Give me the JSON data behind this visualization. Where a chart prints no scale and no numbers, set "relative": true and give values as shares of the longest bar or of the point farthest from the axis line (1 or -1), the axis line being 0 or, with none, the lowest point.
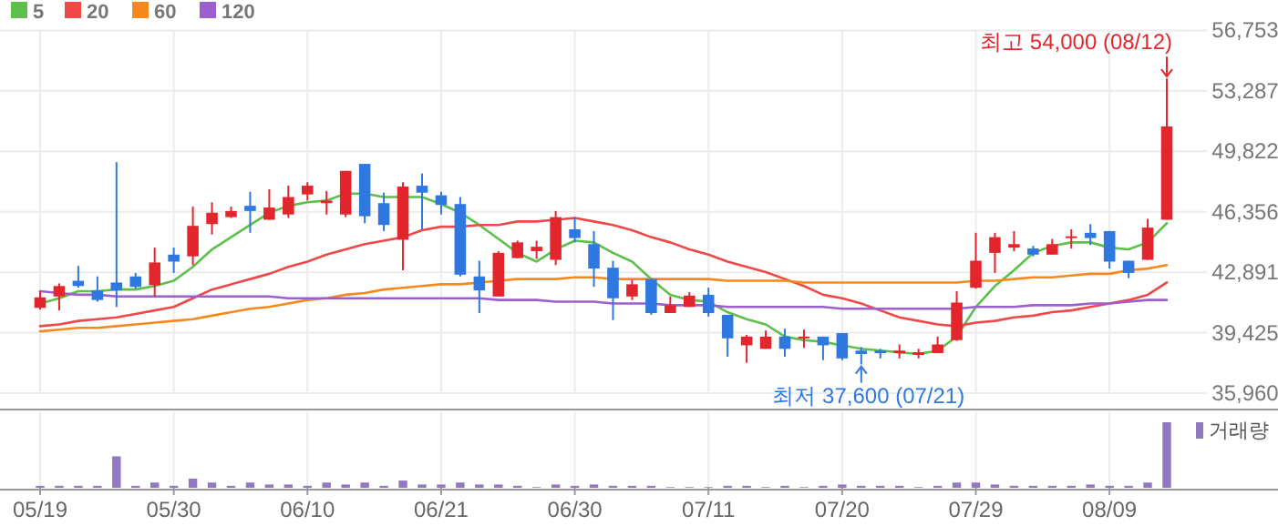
{
  "chart_data": [
    {
      "type": "candlestick",
      "categories": [
        null,
        null,
        null,
        null,
        null,
        null,
        null,
        null,
        null,
        null,
        null,
        null,
        null,
        null,
        null,
        null,
        null,
        null,
        null,
        null,
        null,
        null,
        null,
        null,
        null,
        null,
        null,
        null,
        null,
        null,
        null,
        null,
        null,
        null,
        null,
        null,
        null,
        null,
        null,
        null,
        null,
        null,
        null,
        null,
        null,
        null,
        null,
        null,
        null,
        null,
        null,
        null,
        null,
        null,
        null,
        null,
        null,
        null,
        null,
        null
      ],
      "ohlc": [
        [
          40850,
          41800,
          40750,
          41450
        ],
        [
          41500,
          42250,
          40700,
          42100
        ],
        [
          42400,
          43250,
          42000,
          42100
        ],
        [
          41850,
          42650,
          41200,
          41300
        ],
        [
          42300,
          49200,
          40900,
          41850
        ],
        [
          42650,
          42850,
          41950,
          42050
        ],
        [
          42150,
          44300,
          41500,
          43450
        ],
        [
          43900,
          44300,
          42850,
          43500
        ],
        [
          43800,
          46650,
          43300,
          45550
        ],
        [
          45650,
          46900,
          45050,
          46300
        ],
        [
          46050,
          46650,
          46000,
          46400
        ],
        [
          46700,
          47500,
          45150,
          46400
        ],
        [
          45900,
          47650,
          45900,
          46600
        ],
        [
          46200,
          47850,
          46000,
          47200
        ],
        [
          47350,
          48050,
          47000,
          47850
        ],
        [
          46850,
          47550,
          46200,
          47000
        ],
        [
          46200,
          48700,
          46050,
          48700
        ],
        [
          49100,
          49100,
          45700,
          46100
        ],
        [
          46850,
          47450,
          45250,
          45600
        ],
        [
          44750,
          48050,
          43000,
          47800
        ],
        [
          47850,
          48550,
          45350,
          47450
        ],
        [
          47300,
          47500,
          46200,
          46750
        ],
        [
          46800,
          47200,
          42650,
          42750
        ],
        [
          42650,
          43550,
          40550,
          41850
        ],
        [
          41500,
          44100,
          41500,
          44000
        ],
        [
          43700,
          44700,
          43700,
          44600
        ],
        [
          44100,
          44700,
          43650,
          44350
        ],
        [
          43600,
          46400,
          43300,
          46050
        ],
        [
          45350,
          46050,
          44600,
          44850
        ],
        [
          44500,
          45250,
          42050,
          43100
        ],
        [
          43150,
          43550,
          40150,
          41400
        ],
        [
          41500,
          42450,
          41300,
          42200
        ],
        [
          42500,
          42550,
          40450,
          40550
        ],
        [
          40550,
          41500,
          40550,
          41000
        ],
        [
          40900,
          41750,
          40900,
          41550
        ],
        [
          41600,
          42000,
          40350,
          40550
        ],
        [
          40450,
          40450,
          38050,
          39100
        ],
        [
          38700,
          39300,
          37700,
          39200
        ],
        [
          38500,
          39550,
          38500,
          39200
        ],
        [
          39200,
          39650,
          38050,
          38500
        ],
        [
          39100,
          39600,
          38550,
          39200
        ],
        [
          39200,
          39200,
          37850,
          38700
        ],
        [
          39400,
          39400,
          37850,
          37950
        ],
        [
          38400,
          38600,
          37600,
          38200
        ],
        [
          38400,
          38500,
          37950,
          38250
        ],
        [
          38250,
          38750,
          37950,
          38400
        ],
        [
          38150,
          38500,
          37950,
          38300
        ],
        [
          38250,
          39200,
          38250,
          38750
        ],
        [
          39000,
          41800,
          38950,
          41150
        ],
        [
          42000,
          45150,
          41950,
          43550
        ],
        [
          44000,
          45150,
          42850,
          44900
        ],
        [
          44300,
          45250,
          44100,
          44500
        ],
        [
          44250,
          44400,
          43800,
          43900
        ],
        [
          43900,
          44800,
          43900,
          44500
        ],
        [
          44850,
          45350,
          44250,
          44950
        ],
        [
          45150,
          45650,
          44450,
          44850
        ],
        [
          45250,
          45250,
          43100,
          43500
        ],
        [
          43550,
          43550,
          42550,
          42850
        ],
        [
          43600,
          45950,
          43600,
          45450
        ],
        [
          45900,
          54000,
          45900,
          51250
        ]
      ],
      "colors": [
        "#e3262d",
        "#e3262d",
        "#2f78e0",
        "#2f78e0",
        "#2f78e0",
        "#2f78e0",
        "#e3262d",
        "#2f78e0",
        "#e3262d",
        "#e3262d",
        "#e3262d",
        "#2f78e0",
        "#e3262d",
        "#e3262d",
        "#e3262d",
        "#e3262d",
        "#e3262d",
        "#2f78e0",
        "#2f78e0",
        "#e3262d",
        "#2f78e0",
        "#2f78e0",
        "#2f78e0",
        "#2f78e0",
        "#e3262d",
        "#e3262d",
        "#e3262d",
        "#e3262d",
        "#2f78e0",
        "#2f78e0",
        "#2f78e0",
        "#e3262d",
        "#2f78e0",
        "#e3262d",
        "#e3262d",
        "#2f78e0",
        "#2f78e0",
        "#e3262d",
        "#e3262d",
        "#2f78e0",
        "#e3262d",
        "#2f78e0",
        "#2f78e0",
        "#2f78e0",
        "#2f78e0",
        "#e3262d",
        "#e3262d",
        "#e3262d",
        "#e3262d",
        "#e3262d",
        "#e3262d",
        "#e3262d",
        "#2f78e0",
        "#e3262d",
        "#e3262d",
        "#2f78e0",
        "#2f78e0",
        "#2f78e0",
        "#e3262d",
        "#e3262d"
      ],
      "series": [
        {
          "name": "5",
          "type": "line",
          "color": "#5cc04a",
          "values": [
            41100,
            41400,
            41800,
            41800,
            41900,
            41900,
            42100,
            42400,
            43200,
            44200,
            44900,
            45600,
            46300,
            46700,
            46900,
            47000,
            47400,
            47400,
            47200,
            47200,
            47200,
            46800,
            46300,
            45600,
            44800,
            44000,
            43500,
            44200,
            44700,
            44600,
            44000,
            43500,
            42500,
            41600,
            41300,
            41200,
            40600,
            40200,
            39900,
            39200,
            39000,
            38900,
            38700,
            38500,
            38400,
            38300,
            38200,
            38400,
            39200,
            40900,
            42100,
            43000,
            44000,
            44400,
            44600,
            44600,
            44300,
            44200,
            44600,
            45700
          ]
        },
        {
          "name": "20",
          "type": "line",
          "color": "#f04848",
          "values": [
            39800,
            39900,
            40100,
            40200,
            40300,
            40500,
            40700,
            40900,
            41400,
            41900,
            42200,
            42500,
            42800,
            43200,
            43500,
            43900,
            44200,
            44500,
            44700,
            44900,
            45300,
            45500,
            45500,
            45600,
            45600,
            45800,
            45800,
            45900,
            46000,
            45800,
            45600,
            45300,
            44900,
            44600,
            44200,
            43900,
            43500,
            43200,
            42900,
            42500,
            42100,
            41600,
            41400,
            41100,
            40700,
            40300,
            40100,
            39900,
            39800,
            40000,
            40100,
            40300,
            40400,
            40600,
            40700,
            40900,
            41100,
            41300,
            41600,
            42300
          ]
        },
        {
          "name": "60",
          "type": "line",
          "color": "#f5891e",
          "values": [
            39500,
            39600,
            39700,
            39700,
            39800,
            39900,
            40000,
            40100,
            40200,
            40400,
            40600,
            40800,
            40900,
            41100,
            41300,
            41400,
            41600,
            41700,
            41900,
            42000,
            42100,
            42200,
            42200,
            42300,
            42400,
            42500,
            42500,
            42500,
            42600,
            42600,
            42500,
            42500,
            42500,
            42500,
            42500,
            42500,
            42400,
            42400,
            42400,
            42400,
            42300,
            42300,
            42300,
            42300,
            42300,
            42300,
            42300,
            42300,
            42300,
            42400,
            42400,
            42500,
            42600,
            42600,
            42700,
            42800,
            42800,
            43000,
            43100,
            43300
          ]
        },
        {
          "name": "120",
          "type": "line",
          "color": "#9b5fd0",
          "values": [
            41800,
            41700,
            41600,
            41600,
            41500,
            41500,
            41500,
            41500,
            41500,
            41500,
            41500,
            41500,
            41500,
            41400,
            41400,
            41400,
            41400,
            41400,
            41400,
            41400,
            41400,
            41400,
            41400,
            41400,
            41300,
            41300,
            41300,
            41200,
            41200,
            41200,
            41100,
            41100,
            41100,
            41000,
            41000,
            41000,
            40900,
            40900,
            40900,
            40900,
            40900,
            40900,
            40800,
            40800,
            40800,
            40800,
            40800,
            40800,
            40800,
            40900,
            40900,
            40900,
            41000,
            41000,
            41000,
            41100,
            41100,
            41200,
            41300,
            41300
          ]
        }
      ],
      "ylim": [
        35960,
        56753
      ],
      "yticks": [
        {
          "value": 35960,
          "label": "35,960"
        },
        {
          "value": 39425,
          "label": "39,425"
        },
        {
          "value": 42891,
          "label": "42,891"
        },
        {
          "value": 46356,
          "label": "46,356"
        },
        {
          "value": 49822,
          "label": "49,822"
        },
        {
          "value": 53287,
          "label": "53,287"
        },
        {
          "value": 56753,
          "label": "56,753"
        }
      ],
      "annotations": [
        "최고 54,000 (08/12)",
        "최저 37,600 (07/21)"
      ],
      "grid": true,
      "legend": "top left",
      "tick_labels": "y"
    },
    {
      "type": "bar",
      "relative": true,
      "categories": [
        "05/19",
        null,
        null,
        null,
        null,
        null,
        null,
        "05/30",
        null,
        null,
        null,
        null,
        null,
        null,
        "06/10",
        null,
        null,
        null,
        null,
        null,
        null,
        "06/21",
        null,
        null,
        null,
        null,
        null,
        null,
        "06/30",
        null,
        null,
        null,
        null,
        null,
        null,
        "07/11",
        null,
        null,
        null,
        null,
        null,
        null,
        "07/20",
        null,
        null,
        null,
        null,
        null,
        null,
        "07/29",
        null,
        null,
        null,
        null,
        null,
        null,
        "08/09",
        null,
        null,
        null
      ],
      "series": [
        {
          "name": "거래량",
          "color": "#9079c0",
          "values": [
            0.03,
            0.03,
            0.03,
            0.03,
            0.48,
            0.03,
            0.08,
            0.03,
            0.14,
            0.08,
            0.03,
            0.08,
            0.05,
            0.05,
            0.03,
            0.08,
            0.05,
            0.08,
            0.03,
            0.11,
            0.05,
            0.05,
            0.08,
            0.05,
            0.05,
            0.03,
            0.01,
            0.05,
            0.03,
            0.05,
            0.03,
            0.03,
            0.03,
            0.01,
            0.01,
            0.01,
            0.03,
            0.03,
            0.01,
            0.03,
            0.01,
            0.03,
            0.05,
            0.03,
            0.03,
            0.03,
            0.01,
            0.03,
            0.08,
            0.08,
            0.05,
            0.03,
            0.03,
            0.03,
            0.03,
            0.05,
            0.03,
            0.03,
            0.08,
            1
          ]
        }
      ],
      "grid": "x",
      "legend": "top right",
      "tick_labels": "x"
    }
  ]
}
